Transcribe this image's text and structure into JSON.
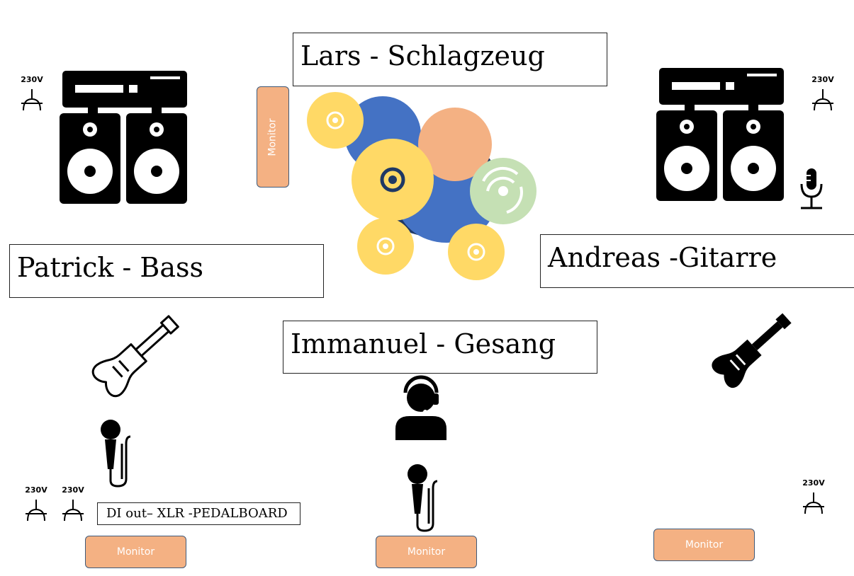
{
  "musicians": {
    "drums": "Lars - Schlagzeug",
    "bass": "Patrick - Bass",
    "guitar": "Andreas -Gitarre",
    "vocals": "Immanuel - Gesang"
  },
  "monitors": {
    "drums": "Monitor",
    "bass": "Monitor",
    "vocals": "Monitor",
    "guitar": "Monitor"
  },
  "power": {
    "left_amp": "230V",
    "right_amp": "230V",
    "bass_1": "230V",
    "bass_2": "230V",
    "guitar": "230V"
  },
  "bass_di_note": "DI out– XLR -PEDALBOARD",
  "colors": {
    "monitor_fill": "#f4b183",
    "monitor_border": "#3f5a7a",
    "cymbal": "#ffd966",
    "drum_blue": "#4472c4",
    "drum_dark": "#1f3864",
    "drum_peach": "#f4b183",
    "cymbal_green": "#c5e0b4"
  },
  "icons": [
    "amplifier-icon",
    "speaker-icon",
    "guitar-icon",
    "microphone-icon",
    "singer-headset-icon",
    "power-socket-icon",
    "drum-kit"
  ]
}
